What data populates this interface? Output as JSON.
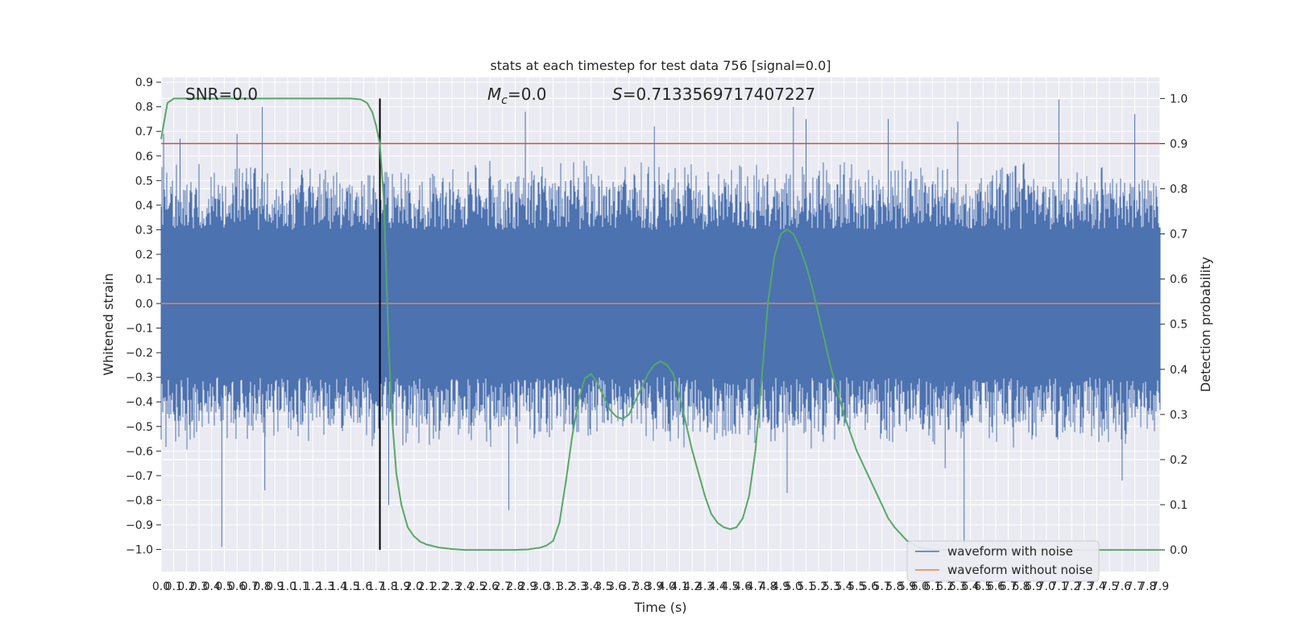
{
  "chart_data": {
    "type": "line",
    "title": "stats at each timestep for test data 756 [signal=0.0]",
    "xlabel": "Time (s)",
    "ylabel": "Whitened strain",
    "y2label": "Detection probability",
    "xlim": [
      0.0,
      7.9
    ],
    "ylim": [
      -1.09,
      0.92
    ],
    "y2lim": [
      -0.048,
      1.047
    ],
    "x_ticks": [
      "0.0",
      "0.1",
      "0.2",
      "0.3",
      "0.4",
      "0.5",
      "0.6",
      "0.7",
      "0.8",
      "0.9",
      "1.0",
      "1.1",
      "1.2",
      "1.3",
      "1.4",
      "1.5",
      "1.6",
      "1.7",
      "1.8",
      "1.9",
      "2.0",
      "2.1",
      "2.2",
      "2.3",
      "2.4",
      "2.5",
      "2.6",
      "2.7",
      "2.8",
      "2.9",
      "3.0",
      "3.1",
      "3.2",
      "3.3",
      "3.4",
      "3.5",
      "3.6",
      "3.7",
      "3.8",
      "3.9",
      "4.0",
      "4.1",
      "4.2",
      "4.3",
      "4.4",
      "4.5",
      "4.6",
      "4.7",
      "4.8",
      "4.9",
      "5.0",
      "5.1",
      "5.2",
      "5.3",
      "5.4",
      "5.5",
      "5.6",
      "5.7",
      "5.8",
      "5.9",
      "6.0",
      "6.1",
      "6.2",
      "6.3",
      "6.4",
      "6.5",
      "6.6",
      "6.7",
      "6.8",
      "6.9",
      "7.0",
      "7.1",
      "7.2",
      "7.3",
      "7.4",
      "7.5",
      "7.6",
      "7.7",
      "7.8",
      "7.9"
    ],
    "y_ticks": [
      "0.9",
      "0.8",
      "0.7",
      "0.6",
      "0.5",
      "0.4",
      "0.3",
      "0.2",
      "0.1",
      "0.0",
      "−0.1",
      "−0.2",
      "−0.3",
      "−0.4",
      "−0.5",
      "−0.6",
      "−0.7",
      "−0.8",
      "−0.9",
      "−1.0"
    ],
    "y2_ticks": [
      "1.0",
      "0.9",
      "0.8",
      "0.7",
      "0.6",
      "0.5",
      "0.4",
      "0.3",
      "0.2",
      "0.1",
      "0.0"
    ],
    "annotations": {
      "snr": "SNR=0.0",
      "mc_prefix": "M",
      "mc_sub": "c",
      "mc_value": "=0.0",
      "s_prefix": "S",
      "s_value": "=0.7133569717407227"
    },
    "threshold": {
      "value": 0.9,
      "axis": "y2",
      "color": "#c44e52"
    },
    "marker_time": 1.73,
    "noise_envelope": {
      "core_band": [
        -0.27,
        0.27
      ],
      "typical_peak": [
        0.3,
        0.6
      ],
      "peaks": [
        {
          "t": 0.02,
          "y": 0.69
        },
        {
          "t": 0.15,
          "y": 0.67
        },
        {
          "t": 0.6,
          "y": 0.69
        },
        {
          "t": 0.8,
          "y": 0.8
        },
        {
          "t": 1.73,
          "y": 0.7
        },
        {
          "t": 2.88,
          "y": 0.78
        },
        {
          "t": 3.9,
          "y": 0.72
        },
        {
          "t": 5.0,
          "y": 0.8
        },
        {
          "t": 5.1,
          "y": 0.75
        },
        {
          "t": 5.75,
          "y": 0.75
        },
        {
          "t": 6.3,
          "y": 0.74
        },
        {
          "t": 7.1,
          "y": 0.83
        },
        {
          "t": 7.7,
          "y": 0.77
        }
      ],
      "troughs": [
        {
          "t": 0.48,
          "y": -0.99
        },
        {
          "t": 0.82,
          "y": -0.76
        },
        {
          "t": 1.8,
          "y": -0.82
        },
        {
          "t": 2.75,
          "y": -0.84
        },
        {
          "t": 4.95,
          "y": -0.77
        },
        {
          "t": 6.35,
          "y": -0.98
        },
        {
          "t": 6.2,
          "y": -0.67
        },
        {
          "t": 7.6,
          "y": -0.72
        }
      ]
    },
    "series": [
      {
        "name": "waveform with noise",
        "color": "#4c72b0",
        "axis": "y"
      },
      {
        "name": "waveform without noise",
        "color": "#dd8452",
        "axis": "y",
        "constant": 0.0
      },
      {
        "color": "#55a868",
        "axis": "y2",
        "x": [
          0.0,
          0.05,
          0.1,
          0.2,
          0.4,
          0.6,
          0.8,
          1.0,
          1.2,
          1.4,
          1.5,
          1.58,
          1.63,
          1.67,
          1.7,
          1.73,
          1.76,
          1.78,
          1.8,
          1.83,
          1.86,
          1.9,
          1.95,
          2.0,
          2.05,
          2.1,
          2.2,
          2.3,
          2.4,
          2.6,
          2.8,
          2.9,
          3.0,
          3.05,
          3.1,
          3.15,
          3.2,
          3.25,
          3.3,
          3.35,
          3.4,
          3.45,
          3.5,
          3.55,
          3.6,
          3.65,
          3.7,
          3.75,
          3.8,
          3.85,
          3.9,
          3.95,
          4.0,
          4.05,
          4.1,
          4.15,
          4.2,
          4.25,
          4.3,
          4.35,
          4.4,
          4.45,
          4.5,
          4.55,
          4.6,
          4.65,
          4.7,
          4.75,
          4.8,
          4.85,
          4.9,
          4.95,
          5.0,
          5.05,
          5.1,
          5.15,
          5.2,
          5.25,
          5.3,
          5.35,
          5.4,
          5.45,
          5.5,
          5.55,
          5.6,
          5.65,
          5.7,
          5.75,
          5.8,
          5.9,
          6.0,
          6.1,
          6.2,
          6.3,
          6.4,
          6.5,
          6.6,
          6.8,
          7.0,
          7.2,
          7.4,
          7.6,
          7.8,
          7.9
        ],
        "y": [
          0.91,
          0.99,
          1.0,
          1.0,
          1.0,
          1.0,
          1.0,
          1.0,
          1.0,
          1.0,
          1.0,
          0.998,
          0.99,
          0.97,
          0.94,
          0.9,
          0.78,
          0.62,
          0.45,
          0.28,
          0.17,
          0.1,
          0.05,
          0.03,
          0.018,
          0.012,
          0.005,
          0.002,
          0.0,
          0.0,
          0.0,
          0.001,
          0.005,
          0.01,
          0.02,
          0.06,
          0.15,
          0.25,
          0.33,
          0.38,
          0.39,
          0.37,
          0.34,
          0.31,
          0.295,
          0.29,
          0.3,
          0.33,
          0.36,
          0.39,
          0.41,
          0.418,
          0.41,
          0.39,
          0.34,
          0.28,
          0.22,
          0.17,
          0.12,
          0.08,
          0.06,
          0.05,
          0.046,
          0.05,
          0.07,
          0.12,
          0.22,
          0.38,
          0.55,
          0.65,
          0.7,
          0.71,
          0.7,
          0.67,
          0.63,
          0.58,
          0.52,
          0.46,
          0.4,
          0.35,
          0.3,
          0.26,
          0.22,
          0.19,
          0.16,
          0.13,
          0.1,
          0.07,
          0.05,
          0.02,
          0.005,
          0.0,
          0.0,
          0.0,
          0.0,
          0.0,
          0.0,
          0.0,
          0.0,
          0.0,
          0.0,
          0.0,
          0.0,
          0.0
        ]
      }
    ],
    "legend": "bottom-right",
    "grid": true
  }
}
